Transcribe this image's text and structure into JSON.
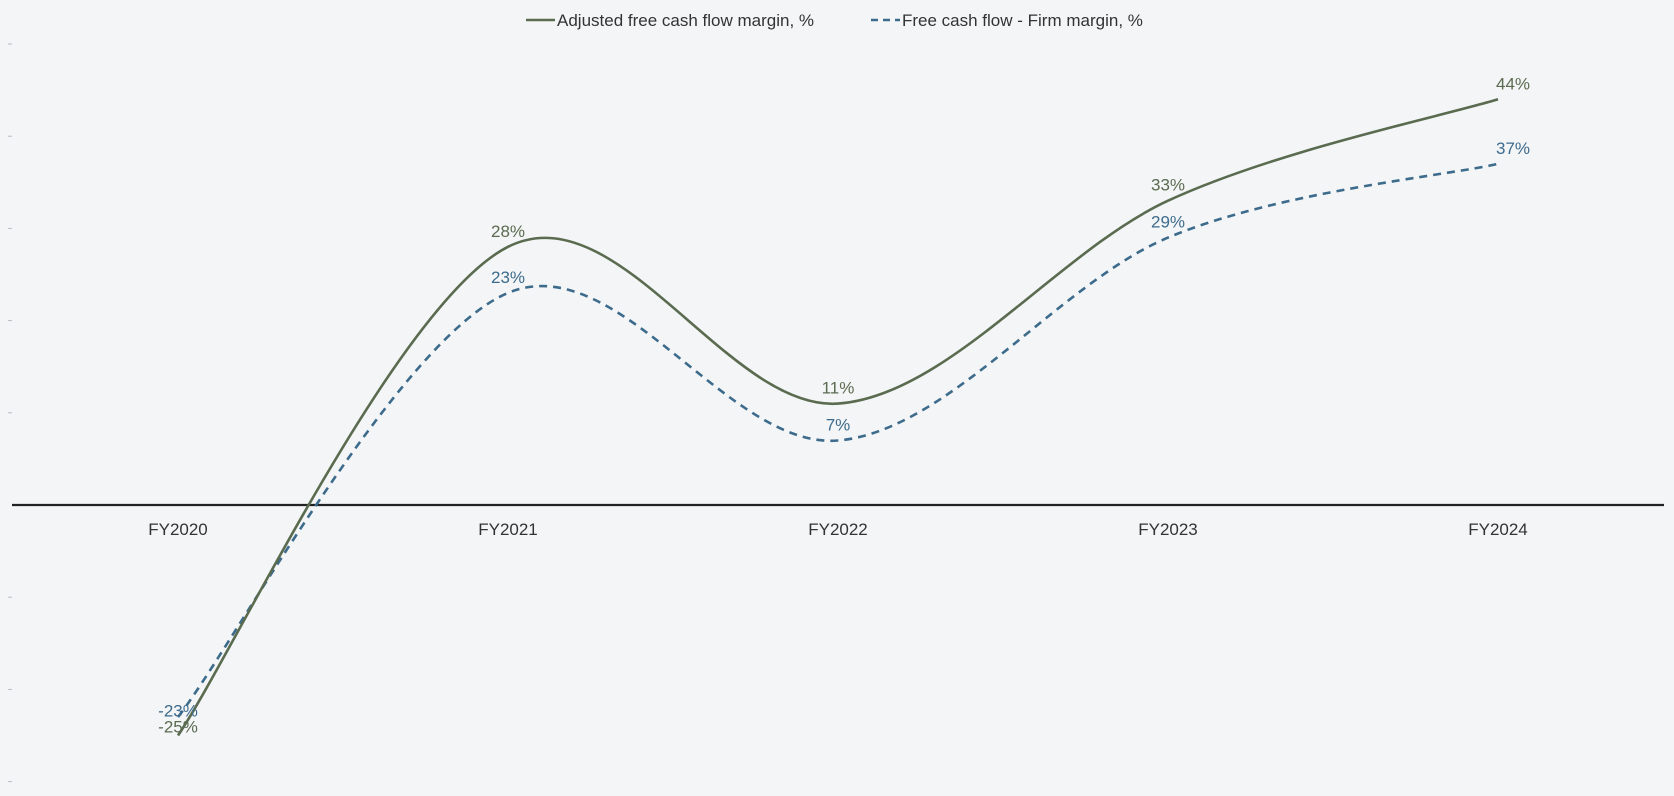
{
  "chart_data": {
    "type": "line",
    "title": "",
    "xlabel": "",
    "ylabel": "",
    "categories": [
      "FY2020",
      "FY2021",
      "FY2022",
      "FY2023",
      "FY2024"
    ],
    "ylim": [
      -30,
      50
    ],
    "grid": false,
    "legend_position": "top-center",
    "smooth": true,
    "series": [
      {
        "name": "Adjusted free cash flow margin, %",
        "values": [
          -25,
          28,
          11,
          33,
          44
        ],
        "labels": [
          "-25%",
          "28%",
          "11%",
          "33%",
          "44%"
        ],
        "color": "#5a6b50",
        "dash": "solid"
      },
      {
        "name": "Free cash flow - Firm margin, %",
        "values": [
          -23,
          23,
          7,
          29,
          37
        ],
        "labels": [
          "-23%",
          "23%",
          "7%",
          "29%",
          "37%"
        ],
        "color": "#3d6b8c",
        "dash": "dashed"
      }
    ]
  }
}
